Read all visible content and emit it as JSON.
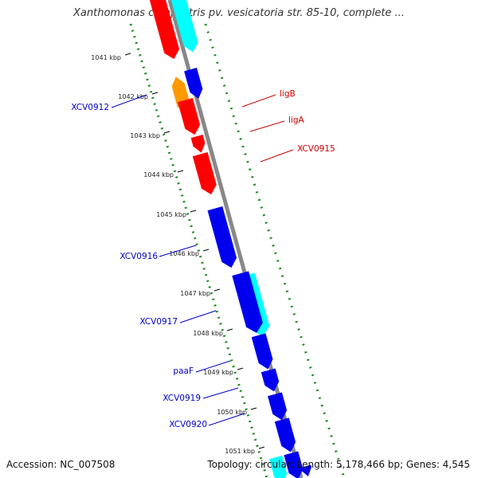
{
  "title": "Xanthomonas campestris pv. vesicatoria str. 85-10, complete ...",
  "footer": {
    "accession": "Accession: NC_007508",
    "topology": "Topology: circular; Length: 5,178,466 bp; Genes: 4,545"
  },
  "colors": {
    "red": "#ff0000",
    "blue": "#0000ee",
    "cyan": "#00ffff",
    "orange": "#ff9900",
    "backbone": "#888888",
    "ruler": "#228b22",
    "label_red": "#cc0000",
    "label_blue": "#0000cc"
  },
  "ruler_ticks": [
    "1041 kbp",
    "1042 kbp",
    "1043 kbp",
    "1044 kbp",
    "1045 kbp",
    "1046 kbp",
    "1047 kbp",
    "1048 kbp",
    "1049 kbp",
    "1050 kbp",
    "1051 kbp"
  ],
  "gene_labels": [
    {
      "text": "ligB",
      "color": "red"
    },
    {
      "text": "ligA",
      "color": "red"
    },
    {
      "text": "XCV0915",
      "color": "red"
    },
    {
      "text": "XCV0912",
      "color": "blue"
    },
    {
      "text": "XCV0916",
      "color": "blue"
    },
    {
      "text": "XCV0917",
      "color": "blue"
    },
    {
      "text": "paaF",
      "color": "blue"
    },
    {
      "text": "XCV0919",
      "color": "blue"
    },
    {
      "text": "XCV0920",
      "color": "blue"
    }
  ],
  "features": [
    {
      "color": "red"
    },
    {
      "color": "cyan"
    },
    {
      "color": "orange"
    },
    {
      "color": "blue"
    },
    {
      "color": "red"
    },
    {
      "color": "red"
    },
    {
      "color": "red"
    },
    {
      "color": "blue"
    },
    {
      "color": "cyan"
    },
    {
      "color": "blue"
    },
    {
      "color": "blue"
    },
    {
      "color": "blue"
    },
    {
      "color": "blue"
    },
    {
      "color": "blue"
    },
    {
      "color": "blue"
    },
    {
      "color": "cyan"
    },
    {
      "color": "blue"
    }
  ]
}
